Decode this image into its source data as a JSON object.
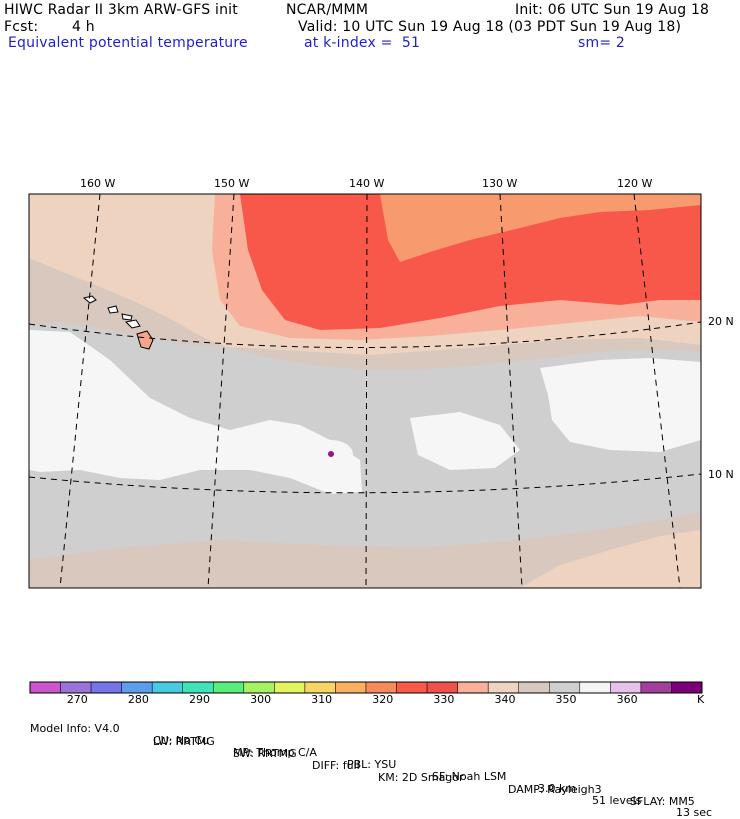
{
  "header": {
    "title": "HIWC Radar II 3km ARW-GFS init",
    "org": "NCAR/MMM",
    "init": "Init: 06 UTC Sun 19 Aug 18",
    "fcst_label": "Fcst:",
    "fcst_value": "4 h",
    "valid": "Valid: 10 UTC Sun 19 Aug 18 (03 PDT Sun 19 Aug 18)",
    "field": "Equivalent potential temperature",
    "level": "at k-index =  51",
    "smooth": "sm= 2"
  },
  "map": {
    "lon_labels": [
      "160 W",
      "150 W",
      "140 W",
      "130 W",
      "120 W"
    ],
    "lat_labels": [
      "20 N",
      "10 N"
    ],
    "colors": {
      "warm_red": "#f7584a",
      "orange": "#f79a6e",
      "salmon": "#f8b09a",
      "peach": "#eed3c0",
      "tan": "#d8c8be",
      "gray": "#cfcfcf",
      "white": "#f6f6f6"
    }
  },
  "colorbar": {
    "colors": [
      "#cc55cc",
      "#9a73d6",
      "#7575ea",
      "#5e9cec",
      "#48cae0",
      "#3fe3b6",
      "#58ee7d",
      "#a6f262",
      "#e3f55e",
      "#f7d562",
      "#f8b063",
      "#f78a5c",
      "#f75a48",
      "#f0504e",
      "#f8b09a",
      "#eed3c0",
      "#d8c8be",
      "#cfcfcf",
      "#f4f4f4",
      "#e6c2ea",
      "#a0409c",
      "#7a0078"
    ],
    "tick_labels": [
      "270",
      "280",
      "290",
      "300",
      "310",
      "320",
      "330",
      "340",
      "350",
      "360"
    ],
    "unit": "K"
  },
  "model_info": {
    "line1": [
      "Model Info: V4.0",
      "CU: No Cu",
      "MP: Thomp C/A",
      "PBL: YSU",
      "SF: Noah LSM",
      "3.0 km",
      "51 levels",
      "13 sec"
    ],
    "line2": [
      "LW: RRTMG",
      "SW: RRTMG",
      "DIFF: full",
      "KM: 2D Smagor",
      "DAMP: Rayleigh3",
      "SFLAY: MM5"
    ]
  }
}
